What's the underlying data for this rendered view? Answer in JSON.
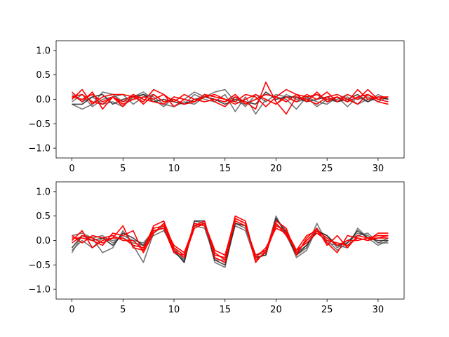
{
  "chart_data": [
    {
      "type": "line",
      "title": "",
      "xlabel": "",
      "ylabel": "",
      "xlim": [
        -1.55,
        32.55
      ],
      "ylim": [
        -1.2,
        1.2
      ],
      "xticks": [
        0,
        5,
        10,
        15,
        20,
        25,
        30
      ],
      "yticks": [
        -1.0,
        -0.5,
        0.0,
        0.5,
        1.0
      ],
      "xtick_labels": [
        "0",
        "5",
        "10",
        "15",
        "20",
        "25",
        "30"
      ],
      "ytick_labels": [
        "−1.0",
        "−0.5",
        "0.0",
        "0.5",
        "1.0"
      ],
      "grid": false,
      "x": [
        0,
        1,
        2,
        3,
        4,
        5,
        6,
        7,
        8,
        9,
        10,
        11,
        12,
        13,
        14,
        15,
        16,
        17,
        18,
        19,
        20,
        21,
        22,
        23,
        24,
        25,
        26,
        27,
        28,
        29,
        30,
        31
      ],
      "series": [
        {
          "color": "#555555",
          "opacity": 0.8,
          "values": [
            -0.1,
            -0.2,
            -0.1,
            0.15,
            0.1,
            -0.05,
            0.0,
            0.1,
            0.05,
            -0.1,
            -0.15,
            -0.05,
            -0.1,
            0.05,
            0.15,
            0.2,
            -0.05,
            -0.1,
            0.0,
            0.1,
            0.05,
            0.0,
            -0.2,
            0.05,
            -0.05,
            -0.1,
            0.05,
            -0.15,
            0.05,
            -0.05,
            0.1,
            0.0
          ]
        },
        {
          "color": "#555555",
          "opacity": 0.8,
          "values": [
            -0.05,
            0.1,
            -0.15,
            0.0,
            0.05,
            0.1,
            -0.1,
            0.05,
            0.1,
            -0.05,
            0.0,
            -0.1,
            0.1,
            0.0,
            -0.05,
            0.1,
            -0.25,
            0.05,
            -0.3,
            0.0,
            -0.1,
            0.1,
            0.0,
            0.05,
            -0.15,
            0.0,
            -0.05,
            0.05,
            -0.1,
            0.0,
            0.05,
            0.0
          ]
        },
        {
          "color": "#555555",
          "opacity": 0.8,
          "values": [
            0.1,
            -0.05,
            0.05,
            -0.1,
            -0.05,
            -0.15,
            0.05,
            0.15,
            0.0,
            -0.15,
            0.05,
            0.0,
            0.15,
            0.05,
            0.0,
            -0.05,
            0.05,
            -0.15,
            0.1,
            -0.05,
            0.1,
            0.05,
            -0.05,
            0.0,
            0.1,
            -0.05,
            0.0,
            0.1,
            0.0,
            0.05,
            -0.05,
            0.05
          ]
        },
        {
          "color": "#222222",
          "opacity": 0.85,
          "values": [
            -0.1,
            -0.1,
            0.05,
            0.1,
            -0.1,
            0.0,
            0.05,
            0.1,
            -0.05,
            0.0,
            -0.05,
            -0.1,
            0.0,
            0.05,
            0.0,
            -0.1,
            0.0,
            -0.05,
            -0.1,
            0.15,
            0.0,
            0.05,
            0.05,
            -0.05,
            0.0,
            0.05,
            -0.05,
            0.0,
            0.1,
            -0.05,
            0.05,
            0.0
          ]
        },
        {
          "color": "#ff0000",
          "opacity": 1,
          "values": [
            0.05,
            0.1,
            -0.05,
            -0.1,
            0.05,
            -0.05,
            0.1,
            0.0,
            -0.05,
            -0.1,
            0.05,
            0.0,
            -0.05,
            0.1,
            -0.05,
            -0.15,
            0.05,
            -0.05,
            -0.2,
            0.35,
            -0.05,
            -0.3,
            0.05,
            0.0,
            -0.1,
            0.05,
            0.1,
            0.0,
            -0.1,
            0.1,
            -0.05,
            -0.1
          ]
        },
        {
          "color": "#ff0000",
          "opacity": 1,
          "values": [
            0.0,
            0.2,
            -0.1,
            0.05,
            0.1,
            0.1,
            0.05,
            -0.05,
            0.2,
            0.1,
            -0.15,
            0.0,
            -0.05,
            0.05,
            0.1,
            0.0,
            -0.05,
            0.1,
            0.05,
            -0.15,
            0.05,
            0.2,
            0.1,
            -0.05,
            0.15,
            -0.05,
            0.05,
            -0.05,
            0.2,
            0.0,
            0.05,
            0.05
          ]
        },
        {
          "color": "#ff0000",
          "opacity": 1,
          "values": [
            0.15,
            -0.05,
            0.15,
            -0.2,
            0.05,
            -0.15,
            0.1,
            -0.1,
            0.1,
            -0.05,
            0.0,
            -0.1,
            -0.05,
            0.1,
            0.05,
            0.0,
            -0.1,
            0.0,
            0.1,
            0.0,
            -0.1,
            0.05,
            -0.05,
            0.1,
            0.0,
            0.15,
            -0.05,
            0.1,
            0.0,
            0.2,
            0.0,
            -0.05
          ]
        },
        {
          "color": "#ff0000",
          "opacity": 1,
          "values": [
            0.05,
            0.0,
            0.1,
            -0.05,
            0.05,
            -0.1,
            0.0,
            0.05,
            0.0,
            0.1,
            -0.05,
            0.1,
            0.0,
            -0.05,
            0.0,
            -0.05,
            0.1,
            -0.1,
            0.0,
            0.1,
            0.05,
            -0.05,
            0.1,
            0.05,
            0.1,
            0.0,
            0.05,
            -0.05,
            0.05,
            0.1,
            0.0,
            0.05
          ]
        }
      ]
    },
    {
      "type": "line",
      "title": "",
      "xlabel": "",
      "ylabel": "",
      "xlim": [
        -1.55,
        32.55
      ],
      "ylim": [
        -1.2,
        1.2
      ],
      "xticks": [
        0,
        5,
        10,
        15,
        20,
        25,
        30
      ],
      "yticks": [
        -1.0,
        -0.5,
        0.0,
        0.5,
        1.0
      ],
      "xtick_labels": [
        "0",
        "5",
        "10",
        "15",
        "20",
        "25",
        "30"
      ],
      "ytick_labels": [
        "−1.0",
        "−0.5",
        "0.0",
        "0.5",
        "1.0"
      ],
      "grid": false,
      "x": [
        0,
        1,
        2,
        3,
        4,
        5,
        6,
        7,
        8,
        9,
        10,
        11,
        12,
        13,
        14,
        15,
        16,
        17,
        18,
        19,
        20,
        21,
        22,
        23,
        24,
        25,
        26,
        27,
        28,
        29,
        30,
        31
      ],
      "series": [
        {
          "color": "#555555",
          "opacity": 0.8,
          "values": [
            -0.25,
            0.1,
            0.05,
            -0.25,
            -0.15,
            0.2,
            -0.1,
            -0.45,
            0.15,
            0.3,
            -0.2,
            -0.45,
            0.4,
            0.35,
            -0.45,
            -0.55,
            0.35,
            0.25,
            -0.3,
            -0.25,
            0.5,
            0.1,
            -0.3,
            -0.15,
            0.35,
            -0.05,
            -0.1,
            -0.15,
            0.25,
            0.05,
            -0.1,
            0.0
          ]
        },
        {
          "color": "#555555",
          "opacity": 0.8,
          "values": [
            0.1,
            0.15,
            0.05,
            0.1,
            -0.05,
            0.1,
            0.0,
            -0.05,
            0.2,
            0.25,
            -0.25,
            -0.4,
            0.35,
            0.3,
            -0.4,
            -0.4,
            0.4,
            0.3,
            -0.35,
            -0.3,
            0.45,
            0.2,
            -0.25,
            -0.1,
            0.2,
            0.1,
            -0.15,
            0.0,
            0.1,
            0.15,
            -0.05,
            0.05
          ]
        },
        {
          "color": "#555555",
          "opacity": 0.8,
          "values": [
            -0.2,
            0.0,
            -0.15,
            0.05,
            0.0,
            0.05,
            -0.05,
            -0.1,
            0.1,
            0.2,
            -0.15,
            -0.4,
            0.3,
            0.25,
            -0.35,
            -0.45,
            0.3,
            0.2,
            -0.4,
            -0.25,
            0.35,
            0.15,
            -0.35,
            -0.2,
            0.25,
            0.0,
            -0.2,
            -0.05,
            0.15,
            0.1,
            -0.05,
            -0.05
          ]
        },
        {
          "color": "#222222",
          "opacity": 0.85,
          "values": [
            -0.15,
            0.1,
            0.0,
            0.05,
            -0.1,
            0.15,
            0.05,
            -0.1,
            0.2,
            0.25,
            -0.2,
            -0.45,
            0.4,
            0.4,
            -0.4,
            -0.5,
            0.35,
            0.3,
            -0.35,
            -0.3,
            0.45,
            0.15,
            -0.3,
            -0.1,
            0.2,
            0.1,
            -0.1,
            -0.05,
            0.2,
            0.05,
            0.0,
            0.0
          ]
        },
        {
          "color": "#ff0000",
          "opacity": 1,
          "values": [
            0.0,
            0.2,
            -0.15,
            0.0,
            0.05,
            0.3,
            -0.15,
            -0.2,
            0.3,
            0.4,
            -0.15,
            -0.3,
            0.3,
            0.4,
            -0.35,
            -0.45,
            0.45,
            0.35,
            -0.45,
            -0.2,
            0.4,
            0.25,
            -0.3,
            0.05,
            0.25,
            -0.1,
            0.1,
            -0.15,
            0.1,
            0.05,
            0.1,
            0.1
          ]
        },
        {
          "color": "#ff0000",
          "opacity": 1,
          "values": [
            0.05,
            0.05,
            0.0,
            -0.1,
            0.15,
            0.1,
            0.2,
            -0.25,
            0.15,
            0.35,
            -0.2,
            -0.35,
            0.25,
            0.35,
            -0.3,
            -0.35,
            0.5,
            0.4,
            -0.4,
            -0.25,
            0.3,
            0.2,
            -0.2,
            0.1,
            0.2,
            -0.05,
            -0.25,
            0.1,
            0.05,
            0.0,
            0.15,
            0.15
          ]
        },
        {
          "color": "#ff0000",
          "opacity": 1,
          "values": [
            -0.05,
            0.1,
            0.05,
            -0.05,
            0.05,
            0.05,
            -0.1,
            -0.15,
            0.25,
            0.3,
            -0.1,
            -0.25,
            0.3,
            0.35,
            -0.2,
            -0.3,
            0.45,
            0.35,
            -0.35,
            -0.15,
            0.25,
            0.15,
            -0.25,
            0.0,
            0.2,
            0.05,
            -0.1,
            0.0,
            0.0,
            0.05,
            0.05,
            0.05
          ]
        },
        {
          "color": "#ff0000",
          "opacity": 1,
          "values": [
            0.1,
            -0.05,
            0.1,
            0.05,
            0.1,
            0.0,
            0.0,
            -0.2,
            0.2,
            0.25,
            -0.25,
            -0.3,
            0.35,
            0.3,
            -0.25,
            -0.4,
            0.4,
            0.3,
            -0.3,
            -0.2,
            0.35,
            0.1,
            -0.2,
            -0.05,
            0.15,
            0.0,
            -0.05,
            -0.1,
            0.05,
            0.0,
            0.05,
            0.1
          ]
        }
      ]
    }
  ]
}
